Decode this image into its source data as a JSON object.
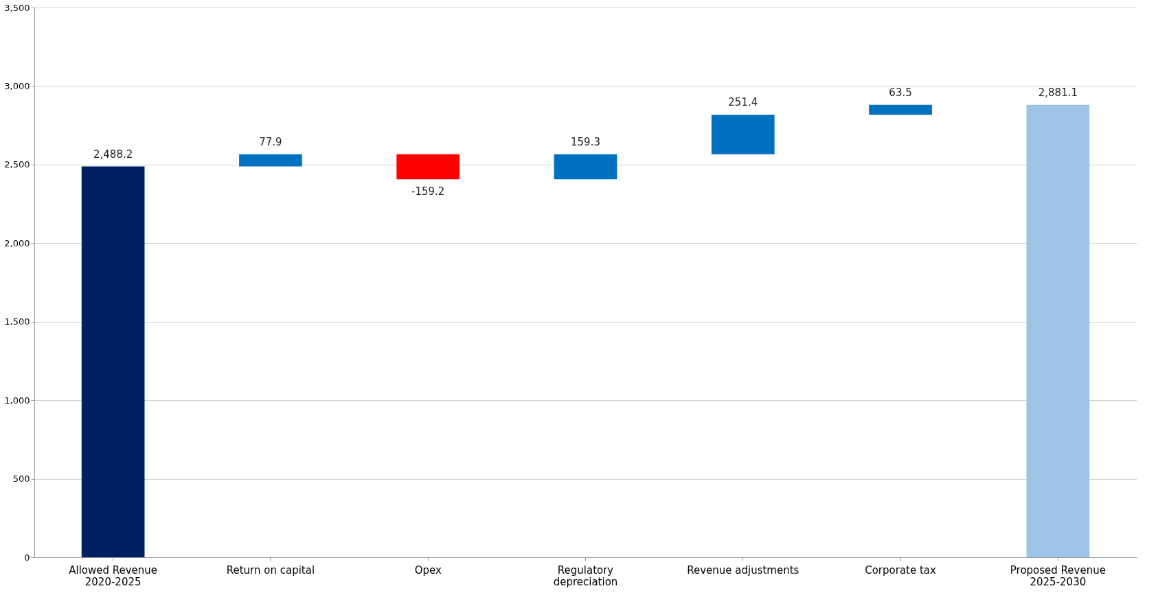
{
  "chart_data": {
    "type": "bar",
    "categories": [
      "Allowed Revenue\n2020-2025",
      "Return on capital",
      "Opex",
      "Regulatory\ndepreciation",
      "Revenue adjustments",
      "Corporate tax",
      "Proposed Revenue\n2025-2030"
    ],
    "values": [
      2488.2,
      77.9,
      -159.2,
      159.3,
      251.4,
      63.5,
      2881.1
    ],
    "value_labels": [
      "2,488.2",
      "77.9",
      "-159.2",
      "159.3",
      "251.4",
      "63.5",
      "2,881.1"
    ],
    "base": [
      0,
      2488.2,
      2566.1,
      2406.9,
      2566.2,
      2817.6,
      0
    ],
    "colors": [
      "#002060",
      "#0070c0",
      "#ff0000",
      "#0070c0",
      "#0070c0",
      "#0070c0",
      "#9dc3e6"
    ],
    "ylim": [
      0,
      3500
    ],
    "yticks": [
      0,
      {
        "value": 500,
        "label": "500"
      },
      {
        "value": 1000,
        "label": "1,000"
      },
      {
        "value": 1500,
        "label": "1,500"
      },
      {
        "value": 2000,
        "label": "2,000"
      },
      {
        "value": 2500,
        "label": "2,500"
      },
      {
        "value": 3000,
        "label": "3,000"
      },
      {
        "value": 3500,
        "label": "3,500"
      }
    ],
    "grid": "y"
  }
}
